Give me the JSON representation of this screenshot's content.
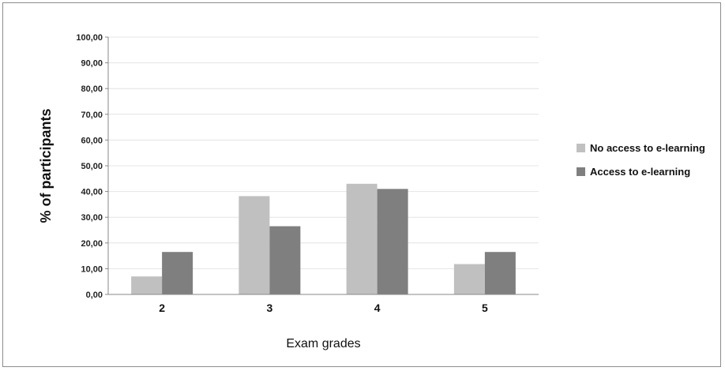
{
  "chart_data": {
    "type": "bar",
    "categories": [
      "2",
      "3",
      "4",
      "5"
    ],
    "series": [
      {
        "name": "No access to e-learning",
        "values": [
          7.0,
          38.2,
          43.0,
          11.8
        ],
        "color": "#c0c0c0"
      },
      {
        "name": "Access to e-learning",
        "values": [
          16.5,
          26.5,
          41.0,
          16.5
        ],
        "color": "#7f7f7f"
      }
    ],
    "title": "",
    "xlabel": "Exam grades",
    "ylabel": "% of participants",
    "ylim": [
      0,
      100
    ],
    "yticks": [
      "0,00",
      "10,00",
      "20,00",
      "30,00",
      "40,00",
      "50,00",
      "60,00",
      "70,00",
      "80,00",
      "90,00",
      "100,00"
    ],
    "grid": true,
    "legend_position": "right"
  }
}
